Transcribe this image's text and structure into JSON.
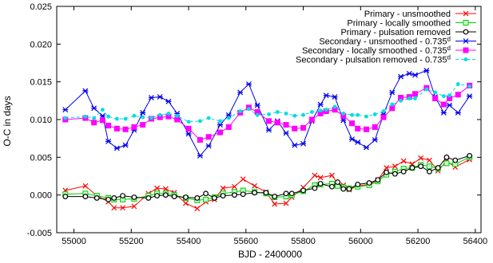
{
  "chart_data": {
    "type": "line",
    "xlabel": "BJD - 2400000",
    "ylabel": "O-C in days",
    "xlim": [
      54940,
      56420
    ],
    "ylim": [
      -0.005,
      0.025
    ],
    "xticks": [
      55000,
      55200,
      55400,
      55600,
      55800,
      56000,
      56200,
      56400
    ],
    "xtick_labels": [
      "55000",
      "55200",
      "55400",
      "55600",
      "55800",
      "56000",
      "56200",
      "56400"
    ],
    "yticks": [
      -0.005,
      0.0,
      0.005,
      0.01,
      0.015,
      0.02,
      0.025
    ],
    "ytick_labels": [
      "-0.005",
      "0.000",
      "0.005",
      "0.010",
      "0.015",
      "0.020",
      "0.025"
    ],
    "grid": false,
    "legend_position": "top-right",
    "legend_superscript": "d",
    "series": [
      {
        "name": "Primary - unsmoothed",
        "color": "#ff0000",
        "marker": "x",
        "x": [
          54970,
          55040,
          55080,
          55120,
          55140,
          55170,
          55210,
          55260,
          55290,
          55320,
          55350,
          55390,
          55430,
          55460,
          55490,
          55520,
          55560,
          55590,
          55630,
          55670,
          55700,
          55740,
          55760,
          55800,
          55840,
          55860,
          55900,
          55920,
          55940,
          55960,
          55990,
          56030,
          56060,
          56090,
          56120,
          56150,
          56180,
          56210,
          56240,
          56270,
          56300,
          56330,
          56380
        ],
        "y": [
          0.0006,
          0.0012,
          -0.0001,
          -0.0009,
          -0.0017,
          -0.0017,
          -0.0015,
          0.0002,
          0.0009,
          0.0008,
          0.0003,
          -0.0011,
          -0.0018,
          -0.0009,
          -0.0006,
          0.0009,
          0.0011,
          0.0021,
          0.0012,
          0.0004,
          -0.0012,
          -0.0011,
          -0.0003,
          0.001,
          0.0026,
          0.0023,
          0.0026,
          0.0015,
          0.0013,
          0.0007,
          0.0012,
          0.0014,
          0.002,
          0.0036,
          0.0038,
          0.0045,
          0.0041,
          0.0049,
          0.0046,
          0.0032,
          0.0045,
          0.0037,
          0.0047
        ]
      },
      {
        "name": "Primary - locally smoothed",
        "color": "#00cc00",
        "marker": "square",
        "x": [
          54970,
          55040,
          55080,
          55120,
          55140,
          55170,
          55210,
          55260,
          55290,
          55320,
          55350,
          55390,
          55430,
          55460,
          55490,
          55520,
          55560,
          55590,
          55630,
          55670,
          55700,
          55740,
          55760,
          55800,
          55840,
          55860,
          55900,
          55920,
          55940,
          55960,
          55990,
          56030,
          56060,
          56090,
          56120,
          56150,
          56180,
          56210,
          56240,
          56270,
          56300,
          56330,
          56380
        ],
        "y": [
          0.0001,
          0.0002,
          -0.0001,
          -0.0004,
          -0.0006,
          -0.0006,
          -0.0005,
          -0.0001,
          0.0002,
          0.0002,
          0.0,
          -0.0004,
          -0.0007,
          -0.0006,
          -0.0003,
          0.0002,
          0.0004,
          0.0006,
          0.0004,
          0.0002,
          -0.0003,
          -0.0002,
          0.0,
          0.0005,
          0.0013,
          0.0014,
          0.0015,
          0.0012,
          0.001,
          0.0009,
          0.0011,
          0.0013,
          0.0018,
          0.0027,
          0.0031,
          0.0035,
          0.0036,
          0.004,
          0.0038,
          0.0035,
          0.0042,
          0.0041,
          0.005
        ]
      },
      {
        "name": "Primary - pulsation removed",
        "color": "#000000",
        "marker": "circle",
        "x": [
          54970,
          55040,
          55080,
          55120,
          55140,
          55170,
          55210,
          55260,
          55290,
          55320,
          55350,
          55390,
          55430,
          55460,
          55490,
          55520,
          55560,
          55590,
          55630,
          55670,
          55700,
          55740,
          55760,
          55800,
          55840,
          55860,
          55900,
          55920,
          55940,
          55960,
          55990,
          56030,
          56060,
          56090,
          56120,
          56150,
          56180,
          56210,
          56240,
          56270,
          56300,
          56330,
          56380
        ],
        "y": [
          -0.0002,
          -0.0002,
          -0.0004,
          -0.0006,
          -0.0004,
          -0.0001,
          -0.0003,
          -0.0004,
          -0.0001,
          0.0,
          -0.0002,
          -0.0003,
          -0.0004,
          0.0002,
          -0.0004,
          -0.0001,
          0.0,
          0.0001,
          0.0003,
          0.0003,
          -0.0002,
          0.0002,
          0.0002,
          0.0006,
          0.0009,
          0.0015,
          0.0011,
          0.0017,
          0.0008,
          0.0008,
          0.0014,
          0.0016,
          0.002,
          0.003,
          0.0028,
          0.0031,
          0.0036,
          0.0038,
          0.0031,
          0.0036,
          0.005,
          0.0046,
          0.0052
        ]
      },
      {
        "name": "Secondary - unsmoothed - 0.735",
        "color": "#0000ee",
        "marker": "star",
        "x": [
          54970,
          55040,
          55070,
          55100,
          55120,
          55150,
          55180,
          55210,
          55240,
          55270,
          55300,
          55330,
          55360,
          55400,
          55440,
          55470,
          55510,
          55540,
          55580,
          55610,
          55640,
          55680,
          55710,
          55740,
          55770,
          55800,
          55830,
          55860,
          55880,
          55910,
          55940,
          55970,
          55990,
          56020,
          56050,
          56080,
          56110,
          56140,
          56170,
          56190,
          56230,
          56260,
          56290,
          56310,
          56340,
          56380
        ],
        "y": [
          0.0113,
          0.0138,
          0.0115,
          0.0105,
          0.0071,
          0.0062,
          0.0066,
          0.0086,
          0.0109,
          0.0129,
          0.013,
          0.0124,
          0.0108,
          0.0081,
          0.0052,
          0.0065,
          0.0093,
          0.0106,
          0.0136,
          0.0147,
          0.0119,
          0.0086,
          0.0098,
          0.0082,
          0.0066,
          0.0068,
          0.0098,
          0.012,
          0.0132,
          0.013,
          0.0099,
          0.0074,
          0.007,
          0.0063,
          0.0073,
          0.0107,
          0.0136,
          0.0157,
          0.0161,
          0.0159,
          0.0165,
          0.013,
          0.0109,
          0.0119,
          0.0109,
          0.0131
        ]
      },
      {
        "name": "Secondary - locally smoothed - 0.735",
        "color": "#ff00ff",
        "marker": "square-filled",
        "x": [
          54970,
          55040,
          55070,
          55100,
          55120,
          55150,
          55180,
          55210,
          55240,
          55270,
          55300,
          55330,
          55360,
          55400,
          55440,
          55470,
          55510,
          55540,
          55580,
          55610,
          55640,
          55680,
          55710,
          55740,
          55770,
          55800,
          55830,
          55860,
          55880,
          55910,
          55940,
          55970,
          55990,
          56020,
          56050,
          56080,
          56110,
          56140,
          56170,
          56190,
          56230,
          56260,
          56290,
          56310,
          56340,
          56380
        ],
        "y": [
          0.01,
          0.0102,
          0.0096,
          0.0099,
          0.0092,
          0.0088,
          0.0087,
          0.009,
          0.0093,
          0.0101,
          0.0103,
          0.0104,
          0.01,
          0.0088,
          0.0073,
          0.0077,
          0.0083,
          0.009,
          0.0109,
          0.0116,
          0.011,
          0.0098,
          0.0096,
          0.0093,
          0.0088,
          0.0089,
          0.01,
          0.0108,
          0.0111,
          0.0113,
          0.0105,
          0.0095,
          0.0088,
          0.0087,
          0.009,
          0.0103,
          0.0115,
          0.0129,
          0.013,
          0.0134,
          0.0142,
          0.0128,
          0.012,
          0.0128,
          0.0133,
          0.0145
        ]
      },
      {
        "name": "Secondary - pulsation removed - 0.735",
        "color": "#00dddd",
        "marker": "dot",
        "x": [
          54970,
          55040,
          55070,
          55100,
          55120,
          55150,
          55180,
          55210,
          55240,
          55270,
          55300,
          55330,
          55360,
          55400,
          55440,
          55470,
          55510,
          55540,
          55580,
          55610,
          55640,
          55680,
          55710,
          55740,
          55770,
          55800,
          55830,
          55860,
          55880,
          55910,
          55940,
          55970,
          55990,
          56020,
          56050,
          56080,
          56110,
          56140,
          56170,
          56190,
          56230,
          56260,
          56290,
          56310,
          56340,
          56380
        ],
        "y": [
          0.0102,
          0.0104,
          0.0102,
          0.0113,
          0.0104,
          0.0101,
          0.0101,
          0.0105,
          0.0103,
          0.0102,
          0.0106,
          0.0108,
          0.0105,
          0.0097,
          0.0098,
          0.0102,
          0.0098,
          0.0102,
          0.0111,
          0.0114,
          0.0106,
          0.0107,
          0.011,
          0.0108,
          0.0105,
          0.0106,
          0.011,
          0.0112,
          0.0113,
          0.0117,
          0.0108,
          0.0106,
          0.0106,
          0.0104,
          0.0107,
          0.0111,
          0.012,
          0.0125,
          0.0128,
          0.0128,
          0.014,
          0.0136,
          0.0131,
          0.0132,
          0.0147,
          0.0144
        ]
      }
    ]
  }
}
